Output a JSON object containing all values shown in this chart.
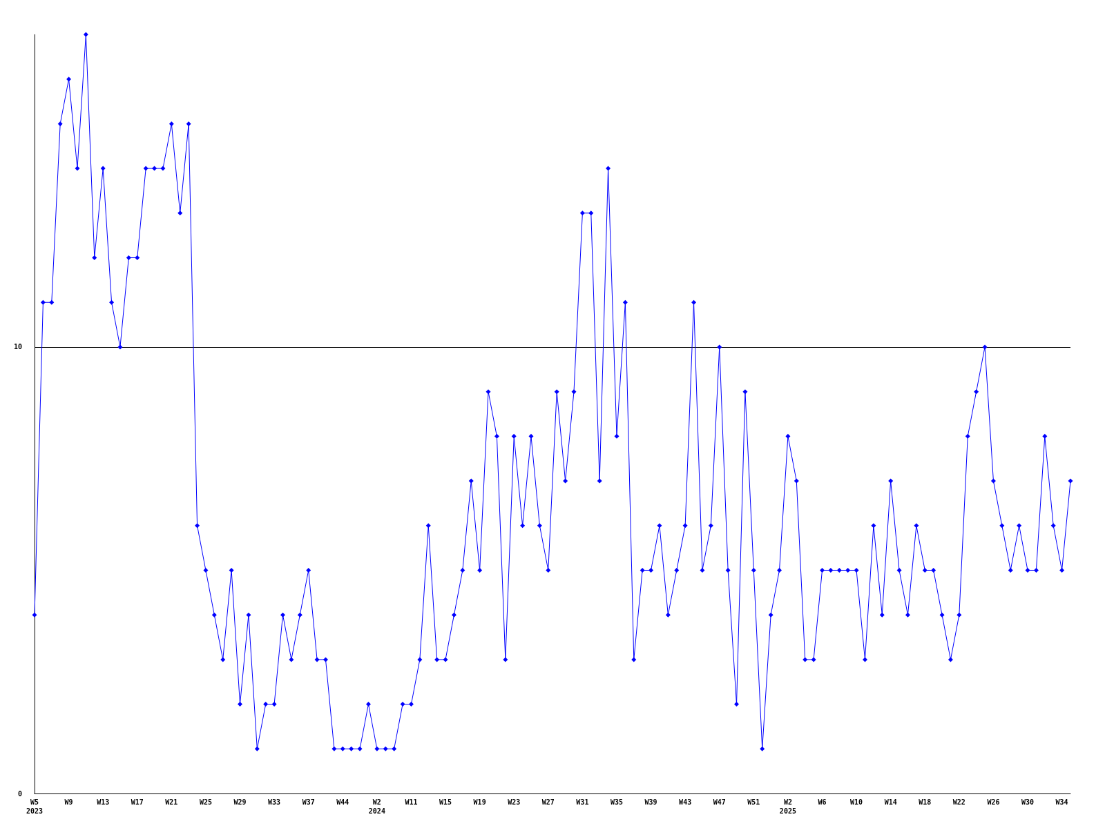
{
  "chart_data": {
    "type": "line",
    "categories": [
      "W5\n2023",
      null,
      null,
      null,
      "W9",
      null,
      null,
      null,
      "W13",
      null,
      null,
      null,
      "W17",
      null,
      null,
      null,
      "W21",
      null,
      null,
      null,
      "W25",
      null,
      null,
      null,
      "W29",
      null,
      null,
      null,
      "W33",
      null,
      null,
      null,
      "W37",
      null,
      null,
      null,
      "W44",
      null,
      null,
      null,
      "W2\n2024",
      null,
      null,
      null,
      "W11",
      null,
      null,
      null,
      "W15",
      null,
      null,
      null,
      "W19",
      null,
      null,
      null,
      "W23",
      null,
      null,
      null,
      "W27",
      null,
      null,
      null,
      "W31",
      null,
      null,
      null,
      "W35",
      null,
      null,
      null,
      "W39",
      null,
      null,
      null,
      "W43",
      null,
      null,
      null,
      "W47",
      null,
      null,
      null,
      "W51",
      null,
      null,
      null,
      "W2\n2025",
      null,
      null,
      null,
      "W6",
      null,
      null,
      null,
      "W10",
      null,
      null,
      null,
      "W14",
      null,
      null,
      null,
      "W18",
      null,
      null,
      null,
      "W22",
      null,
      null,
      null,
      "W26",
      null,
      null,
      null,
      "W30",
      null,
      null,
      null,
      "W34",
      null
    ],
    "series": [
      {
        "color": "#0000ff",
        "values": [
          4,
          11,
          11,
          15,
          16,
          14,
          17,
          12,
          14,
          11,
          10,
          12,
          12,
          14,
          14,
          14,
          15,
          13,
          15,
          6,
          5,
          4,
          3,
          5,
          2,
          4,
          1,
          2,
          2,
          4,
          3,
          4,
          5,
          3,
          3,
          1,
          1,
          1,
          1,
          2,
          1,
          1,
          1,
          2,
          2,
          3,
          6,
          3,
          3,
          4,
          5,
          7,
          5,
          9,
          8,
          3,
          8,
          6,
          8,
          6,
          5,
          9,
          7,
          9,
          13,
          13,
          7,
          14,
          8,
          11,
          3,
          5,
          5,
          6,
          4,
          5,
          6,
          11,
          5,
          6,
          10,
          5,
          2,
          9,
          5,
          1,
          4,
          5,
          8,
          7,
          3,
          3,
          5,
          5,
          5,
          5,
          5,
          3,
          6,
          4,
          7,
          5,
          4,
          6,
          5,
          5,
          4,
          3,
          4,
          8,
          9,
          10,
          7,
          6,
          5,
          6,
          5,
          5,
          8,
          6,
          5,
          7
        ]
      }
    ],
    "ylim": [
      0,
      17
    ],
    "yticks": [
      0,
      10
    ],
    "grid": "y",
    "marker": "diamond",
    "line_style": "solid"
  }
}
